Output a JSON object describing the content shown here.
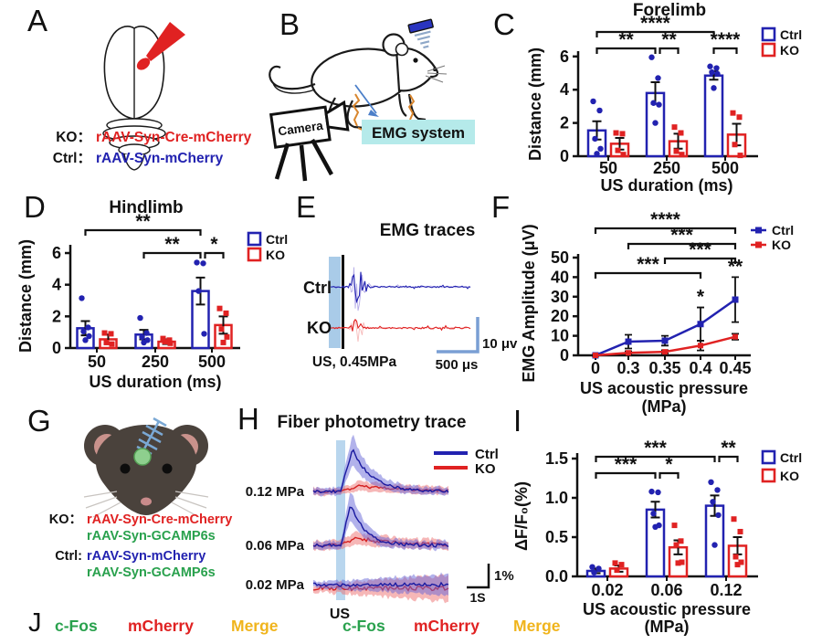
{
  "colors": {
    "ctrl": "#2222b0",
    "ko": "#e02222",
    "green": "#29a14d",
    "yellow": "#f0b41c",
    "lightblue": "#a9cbe8",
    "scalebar": "#7a9fd4",
    "cyan": "#b5eaea",
    "band_blue": "#6666d8",
    "band_red": "#ee7070",
    "black": "#111111"
  },
  "panels": {
    "a": {
      "label": "A",
      "rows": [
        {
          "prefix": "KO：",
          "text": "rAAV-Syn-Cre-mCherry",
          "color": "ko"
        },
        {
          "prefix": "Ctrl：",
          "text": "rAAV-Syn-mCherry",
          "color": "ctrl"
        }
      ]
    },
    "b": {
      "label": "B",
      "camera_label": "Camera",
      "emg_label": "EMG system"
    },
    "e": {
      "label": "E",
      "title": "EMG traces",
      "trace_labels": [
        "Ctrl",
        "KO"
      ],
      "stim_label": "US, 0.45MPa",
      "scale_v": "10 μv",
      "scale_h": "500 μs"
    },
    "g": {
      "label": "G",
      "rows": [
        {
          "prefix": "KO：",
          "text": "rAAV-Syn-Cre-mCherry",
          "color": "ko"
        },
        {
          "prefix": "",
          "text": "rAAV-Syn-GCAMP6s",
          "color": "green"
        },
        {
          "prefix": "Ctrl:",
          "text": "rAAV-Syn-mCherry",
          "color": "ctrl"
        },
        {
          "prefix": "",
          "text": "rAAV-Syn-GCAMP6s",
          "color": "green"
        }
      ]
    },
    "h": {
      "label": "H",
      "title": "Fiber photometry trace",
      "rows": [
        {
          "label": "0.12 MPa"
        },
        {
          "label": "0.06 MPa"
        },
        {
          "label": "0.02 MPa"
        }
      ],
      "us_label": "US",
      "legend": [
        {
          "name": "Ctrl",
          "color": "ctrl"
        },
        {
          "name": "KO",
          "color": "ko"
        }
      ],
      "scale_v": "1%",
      "scale_h": "1S"
    },
    "j": {
      "label": "J",
      "items": [
        {
          "text": "c-Fos",
          "color": "green"
        },
        {
          "text": "mCherry",
          "color": "ko"
        },
        {
          "text": "Merge",
          "color": "yellow"
        },
        {
          "text": "c-Fos",
          "color": "green"
        },
        {
          "text": "mCherry",
          "color": "ko"
        },
        {
          "text": "Merge",
          "color": "yellow"
        }
      ]
    }
  },
  "chart_data": [
    {
      "id": "C",
      "panel_label": "C",
      "type": "bar",
      "title": "Forelimb",
      "xlabel": "US duration (ms)",
      "ylabel": "Distance (mm)",
      "ylim": [
        0,
        6
      ],
      "yticks": [
        0,
        2,
        4,
        6
      ],
      "ytick_labels": [
        "0",
        "2",
        "4",
        "6"
      ],
      "categories": [
        "50",
        "250",
        "500"
      ],
      "series": [
        {
          "name": "Ctrl",
          "color": "ctrl",
          "values": [
            1.55,
            3.8,
            4.85
          ],
          "errors": [
            0.55,
            0.65,
            0.25
          ],
          "points": [
            [
              3.3,
              2.75,
              1.05,
              0.45,
              0.15
            ],
            [
              5.95,
              4.7,
              3.2,
              3.1,
              2.0
            ],
            [
              5.4,
              5.3,
              5.05,
              4.95,
              4.1
            ]
          ]
        },
        {
          "name": "KO",
          "color": "ko",
          "values": [
            0.75,
            0.9,
            1.3
          ],
          "errors": [
            0.35,
            0.45,
            0.65
          ],
          "points": [
            [
              1.4,
              1.35,
              0.35,
              0.1
            ],
            [
              1.75,
              1.4,
              0.3,
              0.1
            ],
            [
              2.6,
              2.35,
              0.7,
              0.05
            ]
          ]
        }
      ],
      "significance": [
        {
          "from": [
            0,
            0
          ],
          "to": [
            2,
            0
          ],
          "row": 0,
          "stars": "****"
        },
        {
          "from": [
            0,
            0
          ],
          "to": [
            1,
            0
          ],
          "row": 1,
          "stars": "**"
        },
        {
          "from": [
            1,
            0
          ],
          "to": [
            1,
            1
          ],
          "row": 1,
          "stars": "**"
        },
        {
          "from": [
            2,
            0
          ],
          "to": [
            2,
            1
          ],
          "row": 1,
          "stars": "****"
        }
      ]
    },
    {
      "id": "D",
      "panel_label": "D",
      "type": "bar",
      "title": "Hindlimb",
      "xlabel": "US duration (ms)",
      "ylabel": "Distance (mm)",
      "ylim": [
        0,
        6
      ],
      "yticks": [
        0,
        2,
        4,
        6
      ],
      "ytick_labels": [
        "0",
        "2",
        "4",
        "6"
      ],
      "categories": [
        "50",
        "250",
        "500"
      ],
      "series": [
        {
          "name": "Ctrl",
          "color": "ctrl",
          "values": [
            1.25,
            0.85,
            3.6
          ],
          "errors": [
            0.45,
            0.3,
            0.85
          ],
          "points": [
            [
              3.15,
              1.3,
              1.05,
              0.75,
              0.5
            ],
            [
              1.9,
              0.95,
              0.7,
              0.5,
              0.35
            ],
            [
              5.4,
              5.35,
              3.6,
              0.9
            ]
          ]
        },
        {
          "name": "KO",
          "color": "ko",
          "values": [
            0.55,
            0.4,
            1.45
          ],
          "errors": [
            0.3,
            0.15,
            0.55
          ],
          "points": [
            [
              0.95,
              0.9,
              0.35,
              0.25
            ],
            [
              0.6,
              0.5,
              0.4,
              0.3
            ],
            [
              2.5,
              2.2,
              1.2,
              0.7,
              0.35
            ]
          ]
        }
      ],
      "significance": [
        {
          "from": [
            0,
            0
          ],
          "to": [
            2,
            0
          ],
          "row": 0,
          "stars": "**"
        },
        {
          "from": [
            1,
            0
          ],
          "to": [
            2,
            0
          ],
          "row": 1,
          "stars": "**"
        },
        {
          "from": [
            2,
            0
          ],
          "to": [
            2,
            1
          ],
          "row": 1,
          "stars": "*"
        }
      ]
    },
    {
      "id": "F",
      "panel_label": "F",
      "type": "line",
      "title": "",
      "xlabel": "US acoustic pressure",
      "xlabel2": "(MPa)",
      "ylabel": "EMG Amplitude (μV)",
      "ylim": [
        0,
        50
      ],
      "yticks": [
        0,
        10,
        20,
        30,
        40,
        50
      ],
      "ytick_labels": [
        "0",
        "10",
        "20",
        "30",
        "40",
        "50"
      ],
      "categories": [
        "0",
        "0.3",
        "0.35",
        "0.4",
        "0.45"
      ],
      "series": [
        {
          "name": "Ctrl",
          "color": "ctrl",
          "values": [
            0,
            7,
            7.5,
            16,
            28.5
          ],
          "errors": [
            0.3,
            3.5,
            2.5,
            8.5,
            11.5
          ]
        },
        {
          "name": "KO",
          "color": "ko",
          "values": [
            0,
            1.3,
            1.8,
            5,
            9.5
          ],
          "errors": [
            0.2,
            0.8,
            0.8,
            2.5,
            1.5
          ]
        }
      ],
      "significance": [
        {
          "from": [
            0,
            0
          ],
          "to": [
            4,
            0
          ],
          "row": 0,
          "stars": "****"
        },
        {
          "from": [
            1,
            0
          ],
          "to": [
            4,
            0
          ],
          "row": 1,
          "stars": "***"
        },
        {
          "from": [
            2,
            0
          ],
          "to": [
            4,
            0
          ],
          "row": 2,
          "stars": "***"
        },
        {
          "from": [
            0,
            0
          ],
          "to": [
            3,
            0
          ],
          "row": 3,
          "stars": "***"
        }
      ],
      "point_stars": [
        {
          "x": 3,
          "stars": "*"
        },
        {
          "x": 4,
          "stars": "**"
        }
      ]
    },
    {
      "id": "I",
      "panel_label": "I",
      "type": "bar",
      "title": "",
      "xlabel": "US acoustic pressure",
      "xlabel2": "(MPa)",
      "ylabel": "ΔF/F₀(%)",
      "ylim": [
        0,
        1.5
      ],
      "yticks": [
        0,
        0.5,
        1.0,
        1.5
      ],
      "ytick_labels": [
        "0.0",
        "0.5",
        "1.0",
        "1.5"
      ],
      "categories": [
        "0.02",
        "0.06",
        "0.12"
      ],
      "series": [
        {
          "name": "Ctrl",
          "color": "ctrl",
          "values": [
            0.07,
            0.85,
            0.9
          ],
          "errors": [
            0.03,
            0.1,
            0.13
          ],
          "points": [
            [
              0.12,
              0.1,
              0.05
            ],
            [
              1.08,
              1.07,
              0.8,
              0.65,
              0.63
            ],
            [
              1.2,
              1.1,
              0.95,
              0.78,
              0.4
            ]
          ]
        },
        {
          "name": "KO",
          "color": "ko",
          "values": [
            0.1,
            0.37,
            0.39
          ],
          "errors": [
            0.04,
            0.09,
            0.11
          ],
          "points": [
            [
              0.17,
              0.15,
              0.08
            ],
            [
              0.65,
              0.45,
              0.4,
              0.18,
              0.17
            ],
            [
              0.73,
              0.57,
              0.25,
              0.18,
              0.15
            ]
          ]
        }
      ],
      "significance": [
        {
          "from": [
            0,
            0
          ],
          "to": [
            2,
            0
          ],
          "row": 0,
          "stars": "***"
        },
        {
          "from": [
            2,
            0
          ],
          "to": [
            2,
            1
          ],
          "row": 0,
          "stars": "**"
        },
        {
          "from": [
            0,
            0
          ],
          "to": [
            1,
            0
          ],
          "row": 1,
          "stars": "***"
        },
        {
          "from": [
            1,
            0
          ],
          "to": [
            1,
            1
          ],
          "row": 1,
          "stars": "*"
        }
      ]
    }
  ]
}
